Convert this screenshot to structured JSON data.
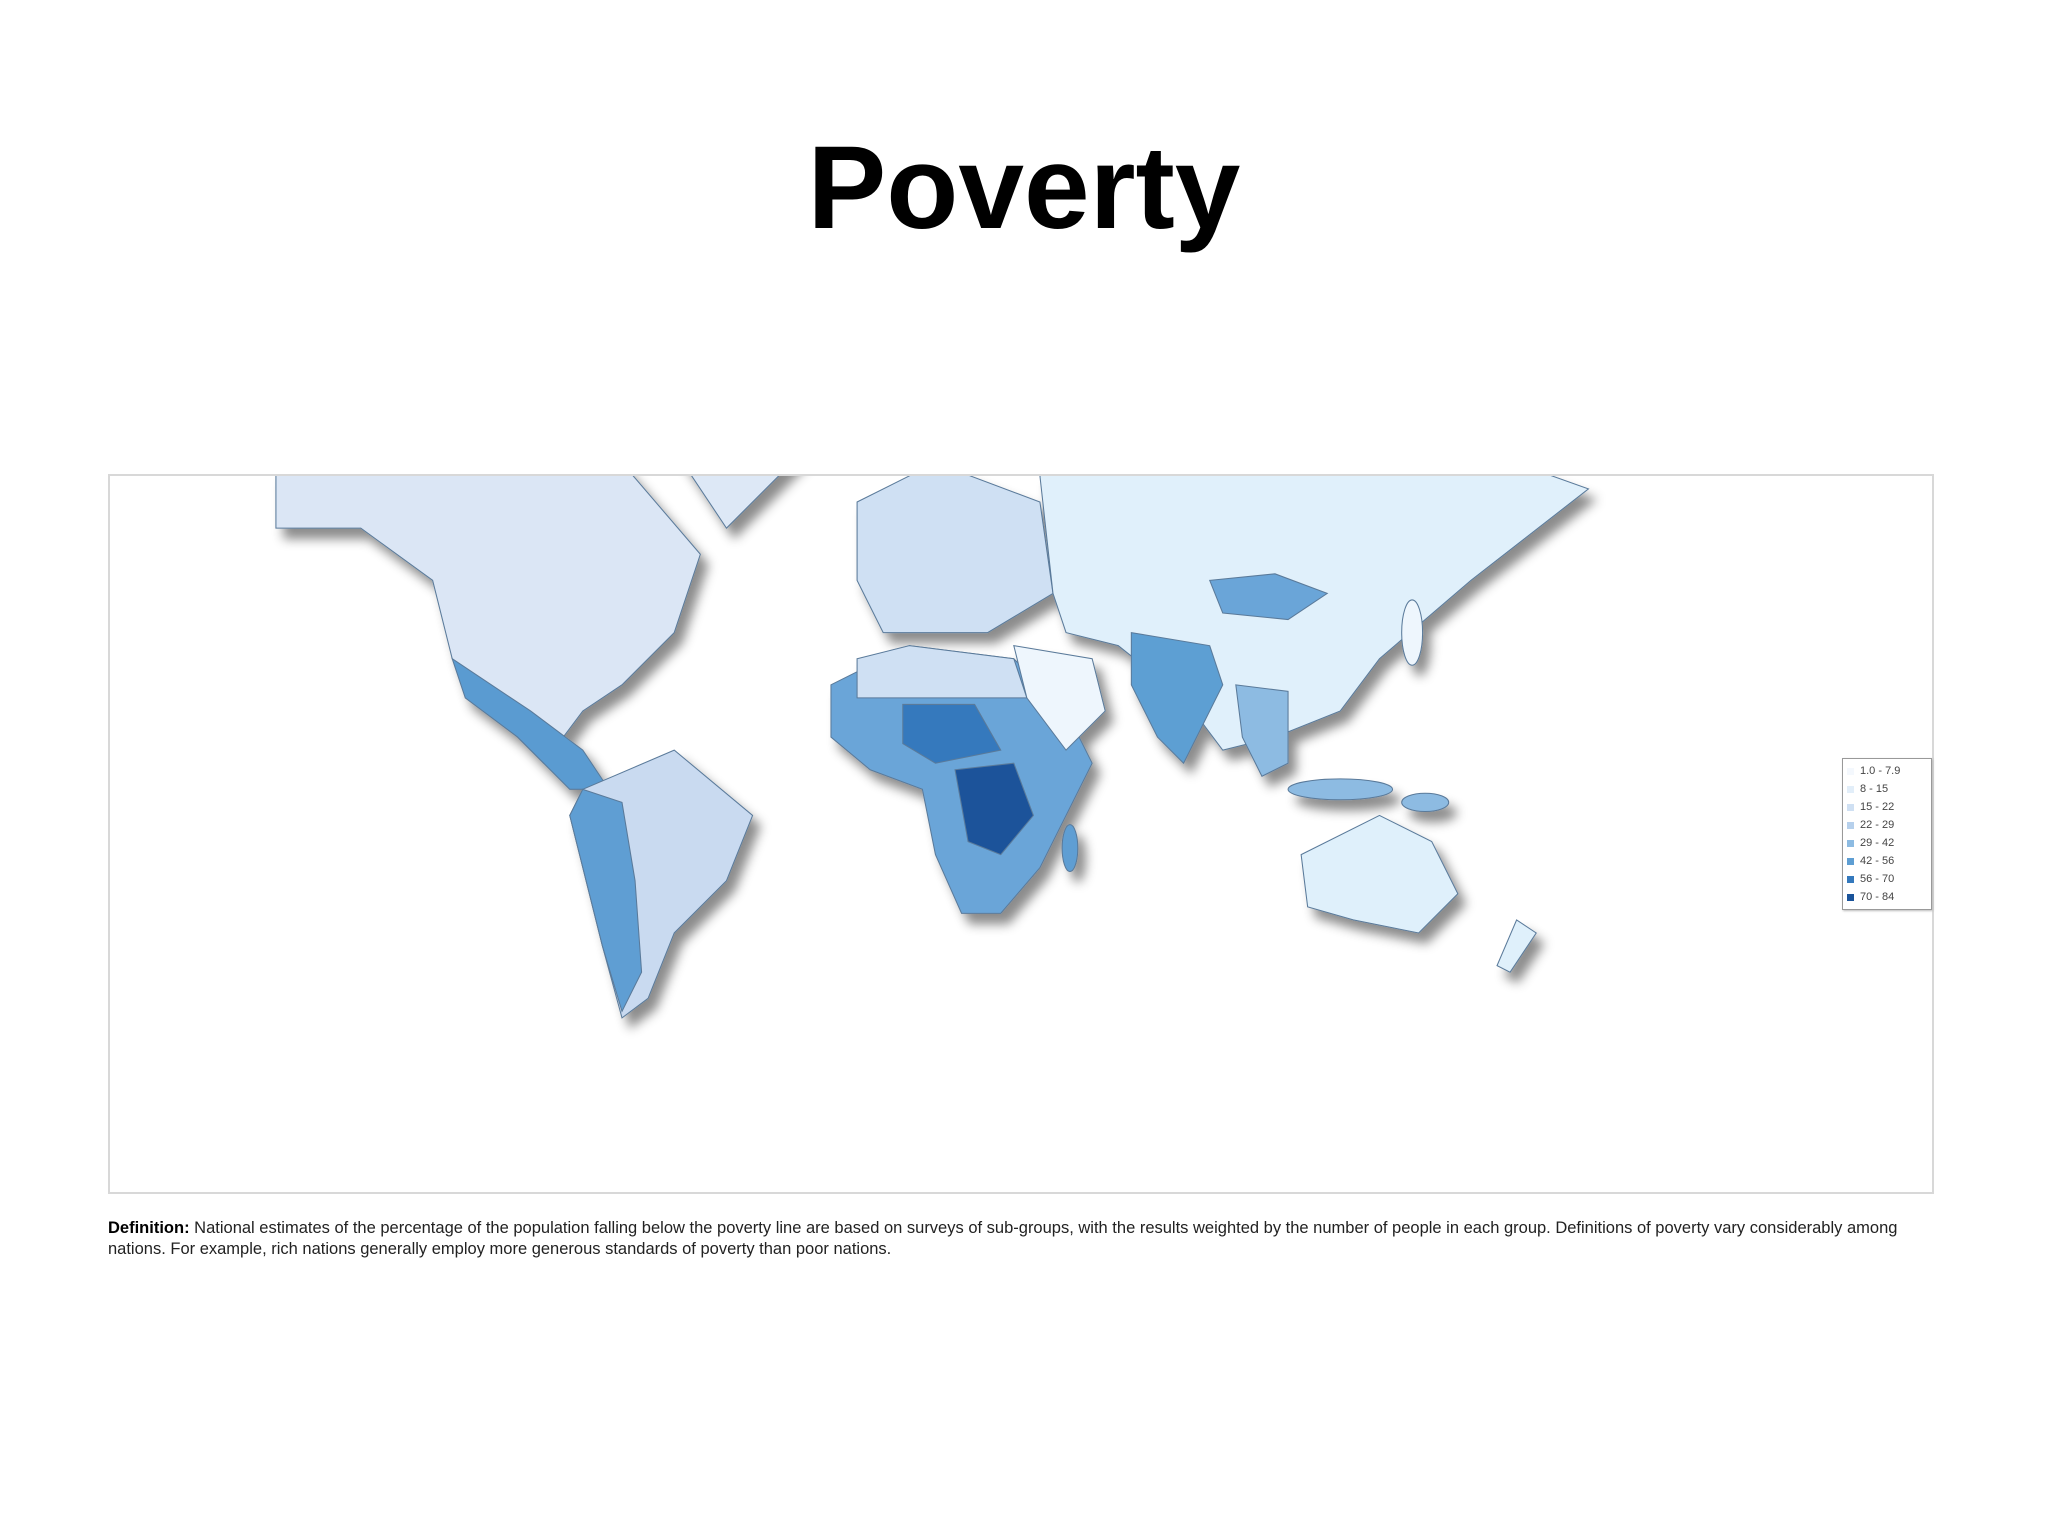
{
  "title": "Poverty",
  "legend": {
    "items": [
      {
        "label": "1.0 - 7.9",
        "color": "#f4f8fd"
      },
      {
        "label": "8 - 15",
        "color": "#e2eef9"
      },
      {
        "label": "15 - 22",
        "color": "#cfe0f3"
      },
      {
        "label": "22 - 29",
        "color": "#b6d0ec"
      },
      {
        "label": "29 - 42",
        "color": "#8dbbe2"
      },
      {
        "label": "42 - 56",
        "color": "#5e9ed3"
      },
      {
        "label": "56 - 70",
        "color": "#3479bd"
      },
      {
        "label": "70 - 84",
        "color": "#1a539a"
      }
    ]
  },
  "definition": {
    "label": "Definition:",
    "text": "National estimates of the percentage of the population falling below the poverty line are based on surveys of sub-groups, with the results weighted by the number of people in each group. Definitions of poverty vary considerably among nations. For example, rich nations generally employ more generous standards of poverty than poor nations."
  }
}
